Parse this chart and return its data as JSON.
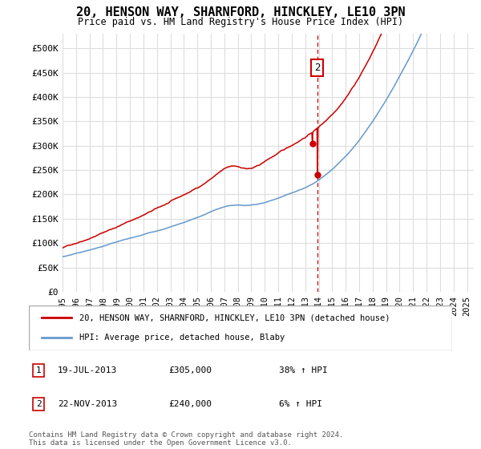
{
  "title": "20, HENSON WAY, SHARNFORD, HINCKLEY, LE10 3PN",
  "subtitle": "Price paid vs. HM Land Registry's House Price Index (HPI)",
  "legend_line1": "20, HENSON WAY, SHARNFORD, HINCKLEY, LE10 3PN (detached house)",
  "legend_line2": "HPI: Average price, detached house, Blaby",
  "red_color": "#cc0000",
  "blue_color": "#6699cc",
  "annotation_box_color": "#cc0000",
  "dashed_line_color": "#cc0000",
  "transaction1": {
    "label": "1",
    "date": "19-JUL-2013",
    "price": "£305,000",
    "hpi": "38% ↑ HPI",
    "x_year": 2013.54,
    "y_val": 305000
  },
  "transaction2": {
    "label": "2",
    "date": "22-NOV-2013",
    "price": "£240,000",
    "hpi": "6% ↑ HPI",
    "x_year": 2013.9,
    "y_val": 240000
  },
  "ylim": [
    0,
    530000
  ],
  "xlim_start": 1995,
  "xlim_end": 2025.5,
  "yticks": [
    0,
    50000,
    100000,
    150000,
    200000,
    250000,
    300000,
    350000,
    400000,
    450000,
    500000
  ],
  "ytick_labels": [
    "£0",
    "£50K",
    "£100K",
    "£150K",
    "£200K",
    "£250K",
    "£300K",
    "£350K",
    "£400K",
    "£450K",
    "£500K"
  ],
  "footer": "Contains HM Land Registry data © Crown copyright and database right 2024.\nThis data is licensed under the Open Government Licence v3.0.",
  "background_color": "#ffffff",
  "grid_color": "#dddddd"
}
